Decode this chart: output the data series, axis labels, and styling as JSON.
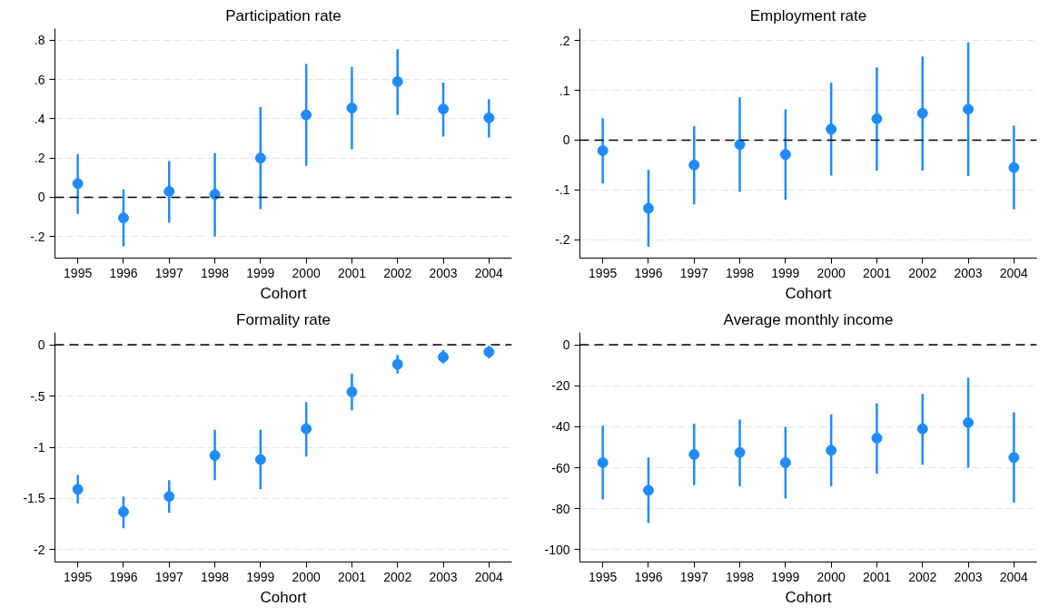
{
  "chart_data": [
    {
      "type": "scatter",
      "title": "Participation rate",
      "xlabel": "Cohort",
      "categories": [
        "1995",
        "1996",
        "1997",
        "1998",
        "1999",
        "2000",
        "2001",
        "2002",
        "2003",
        "2004"
      ],
      "series": [
        {
          "color": "#1e8cff",
          "values": [
            0.07,
            -0.105,
            0.03,
            0.015,
            0.2,
            0.42,
            0.455,
            0.59,
            0.45,
            0.405
          ],
          "errors": [
            [
              -0.085,
              0.22
            ],
            [
              -0.25,
              0.04
            ],
            [
              -0.13,
              0.185
            ],
            [
              -0.2,
              0.225
            ],
            [
              -0.06,
              0.46
            ],
            [
              0.16,
              0.68
            ],
            [
              0.245,
              0.665
            ],
            [
              0.42,
              0.755
            ],
            [
              0.31,
              0.585
            ],
            [
              0.305,
              0.5
            ]
          ]
        }
      ],
      "ylim": [
        -0.31,
        0.86
      ],
      "yticks": [
        {
          "value": -0.2,
          "label": "-.2"
        },
        0,
        {
          "value": 0.2,
          "label": ".2"
        },
        {
          "value": 0.4,
          "label": ".4"
        },
        {
          "value": 0.6,
          "label": ".6"
        },
        {
          "value": 0.8,
          "label": ".8"
        }
      ],
      "ref_lines": [
        {
          "axis": "y",
          "value": 0,
          "color": "#000000",
          "line_style": "dashed"
        }
      ],
      "grid": "y",
      "marker": "circle"
    },
    {
      "type": "scatter",
      "title": "Employment rate",
      "xlabel": "Cohort",
      "categories": [
        "1995",
        "1996",
        "1997",
        "1998",
        "1999",
        "2000",
        "2001",
        "2002",
        "2003",
        "2004"
      ],
      "series": [
        {
          "color": "#1e8cff",
          "values": [
            -0.021,
            -0.137,
            -0.05,
            -0.009,
            -0.029,
            0.022,
            0.043,
            0.054,
            0.062,
            -0.055
          ],
          "errors": [
            [
              -0.087,
              0.044
            ],
            [
              -0.214,
              -0.06
            ],
            [
              -0.129,
              0.028
            ],
            [
              -0.104,
              0.086
            ],
            [
              -0.12,
              0.062
            ],
            [
              -0.071,
              0.115
            ],
            [
              -0.061,
              0.146
            ],
            [
              -0.061,
              0.168
            ],
            [
              -0.072,
              0.196
            ],
            [
              -0.139,
              0.029
            ]
          ]
        }
      ],
      "ylim": [
        -0.237,
        0.224
      ],
      "yticks": [
        {
          "value": -0.2,
          "label": "-.2"
        },
        {
          "value": -0.1,
          "label": "-.1"
        },
        0,
        {
          "value": 0.1,
          "label": ".1"
        },
        {
          "value": 0.2,
          "label": ".2"
        }
      ],
      "ref_lines": [
        {
          "axis": "y",
          "value": 0,
          "color": "#000000",
          "line_style": "dashed"
        }
      ],
      "grid": "y",
      "marker": "circle"
    },
    {
      "type": "scatter",
      "title": "Formality rate",
      "xlabel": "Cohort",
      "categories": [
        "1995",
        "1996",
        "1997",
        "1998",
        "1999",
        "2000",
        "2001",
        "2002",
        "2003",
        "2004"
      ],
      "series": [
        {
          "color": "#1e8cff",
          "values": [
            -1.41,
            -1.63,
            -1.48,
            -1.08,
            -1.12,
            -0.82,
            -0.46,
            -0.19,
            -0.12,
            -0.07
          ],
          "errors": [
            [
              -1.55,
              -1.27
            ],
            [
              -1.79,
              -1.48
            ],
            [
              -1.64,
              -1.32
            ],
            [
              -1.32,
              -0.83
            ],
            [
              -1.41,
              -0.83
            ],
            [
              -1.09,
              -0.56
            ],
            [
              -0.64,
              -0.28
            ],
            [
              -0.28,
              -0.1
            ],
            [
              -0.18,
              -0.05
            ],
            [
              -0.13,
              -0.01
            ]
          ]
        }
      ],
      "ylim": [
        -2.12,
        0.12
      ],
      "yticks": [
        -2,
        -1.5,
        -1,
        {
          "value": -0.5,
          "label": "-.5"
        },
        0
      ],
      "ref_lines": [
        {
          "axis": "y",
          "value": 0,
          "color": "#000000",
          "line_style": "dashed"
        }
      ],
      "grid": "y",
      "marker": "circle"
    },
    {
      "type": "scatter",
      "title": "Average monthly income",
      "xlabel": "Cohort",
      "categories": [
        "1995",
        "1996",
        "1997",
        "1998",
        "1999",
        "2000",
        "2001",
        "2002",
        "2003",
        "2004"
      ],
      "series": [
        {
          "color": "#1e8cff",
          "values": [
            -57.5,
            -71,
            -53.5,
            -52.5,
            -57.5,
            -51.5,
            -45.5,
            -41,
            -38,
            -55
          ],
          "errors": [
            [
              -75.5,
              -39.5
            ],
            [
              -87,
              -55
            ],
            [
              -68.5,
              -38.5
            ],
            [
              -69,
              -36.5
            ],
            [
              -75,
              -40
            ],
            [
              -69,
              -34
            ],
            [
              -63,
              -28.5
            ],
            [
              -58.5,
              -24
            ],
            [
              -60,
              -16
            ],
            [
              -77,
              -33
            ]
          ]
        }
      ],
      "ylim": [
        -106,
        6
      ],
      "yticks": [
        -100,
        -80,
        -60,
        -40,
        -20,
        0
      ],
      "ref_lines": [
        {
          "axis": "y",
          "value": 0,
          "color": "#000000",
          "line_style": "dashed"
        }
      ],
      "grid": "y",
      "marker": "circle"
    }
  ]
}
